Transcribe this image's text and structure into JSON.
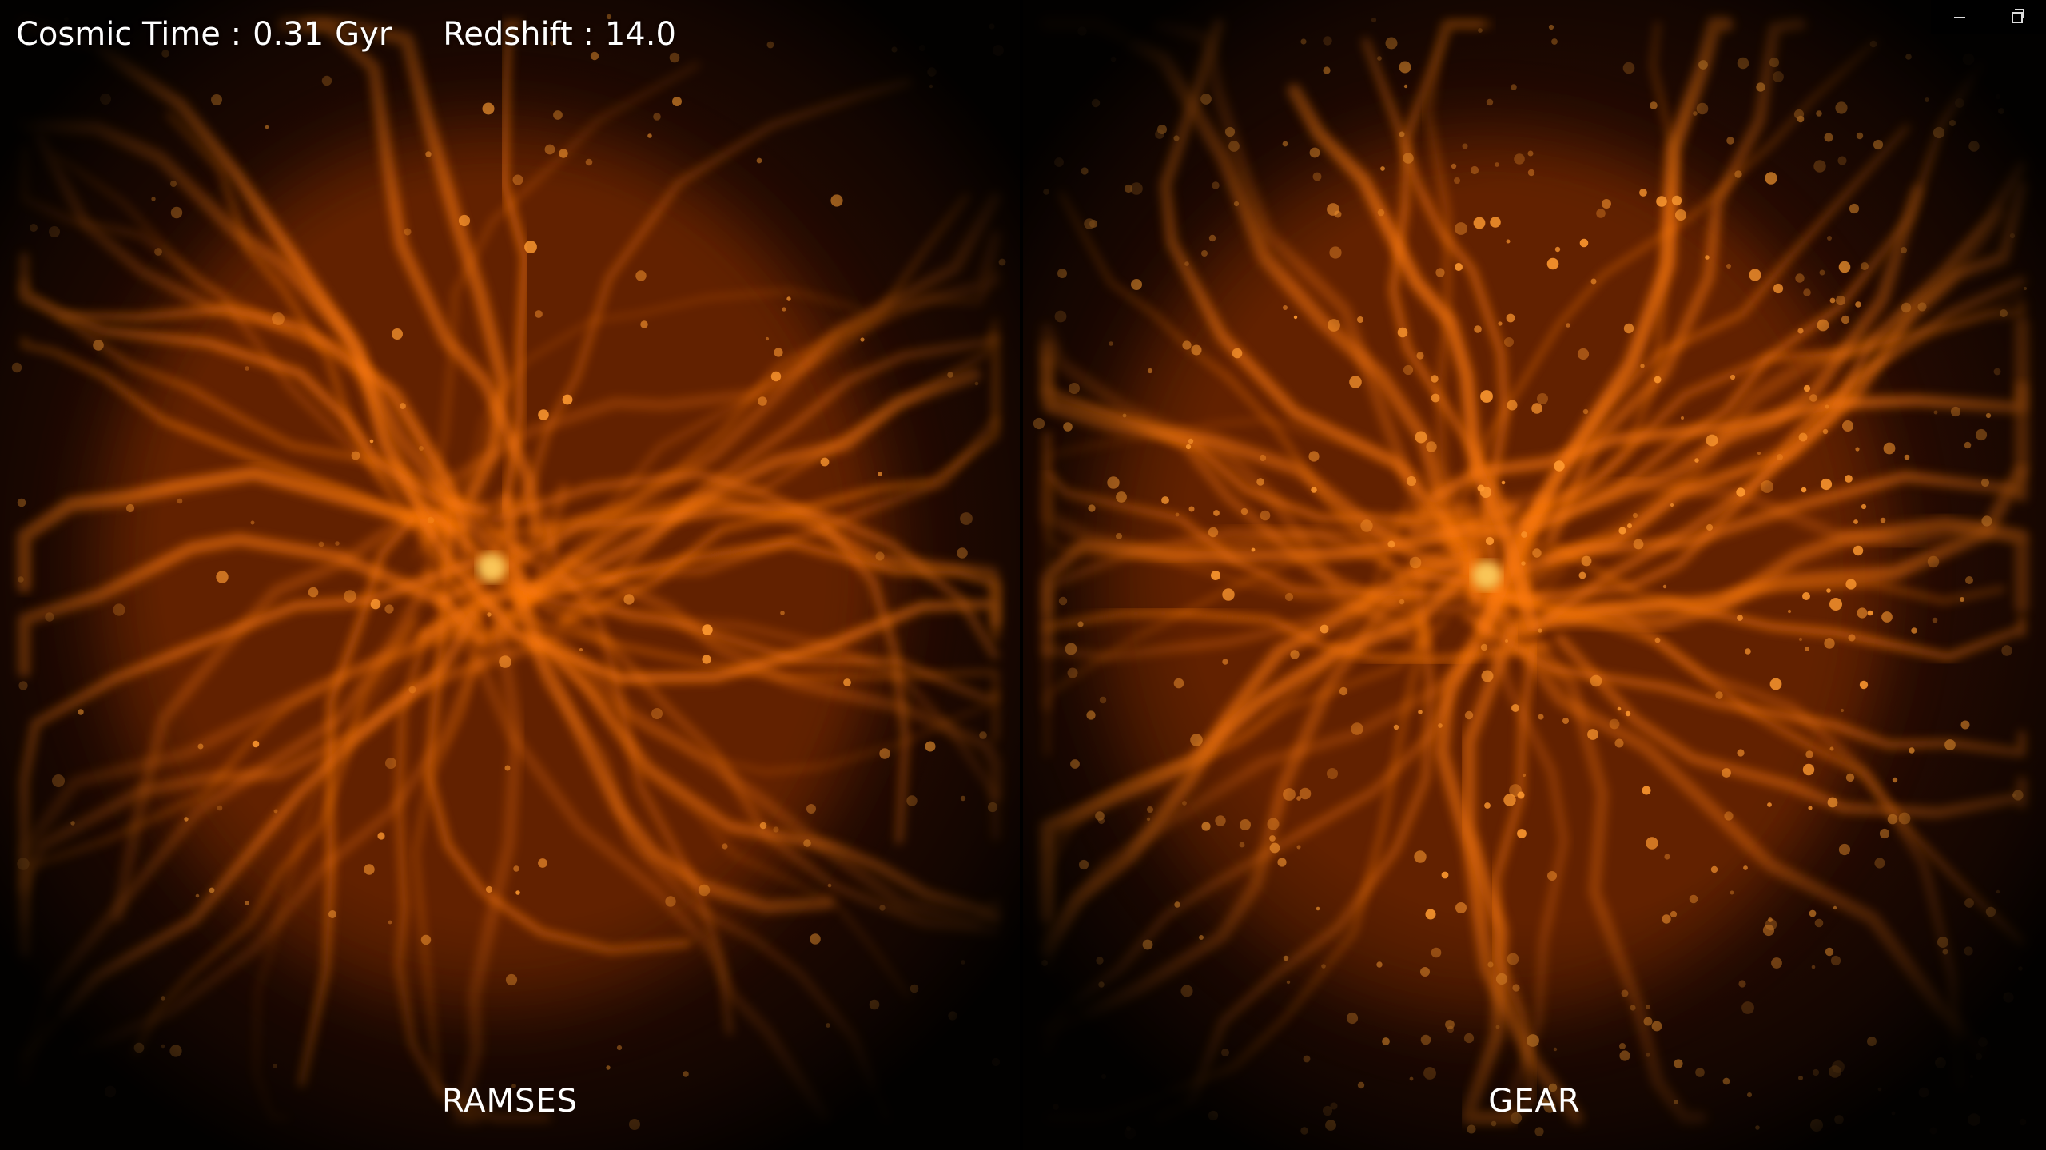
{
  "hud": {
    "cosmic_time_label": "Cosmic Time :",
    "cosmic_time_value": "0.31",
    "cosmic_time_unit": "Gyr",
    "redshift_label": "Redshift :",
    "redshift_value": "14.0"
  },
  "panels": [
    {
      "label": "RAMSES"
    },
    {
      "label": "GEAR"
    }
  ],
  "window_controls": {
    "minimize": "minimize-icon",
    "restore": "restore-icon"
  },
  "colors": {
    "background": "#2a0c02",
    "filament": "#ff7a10",
    "core": "#ffd060"
  }
}
